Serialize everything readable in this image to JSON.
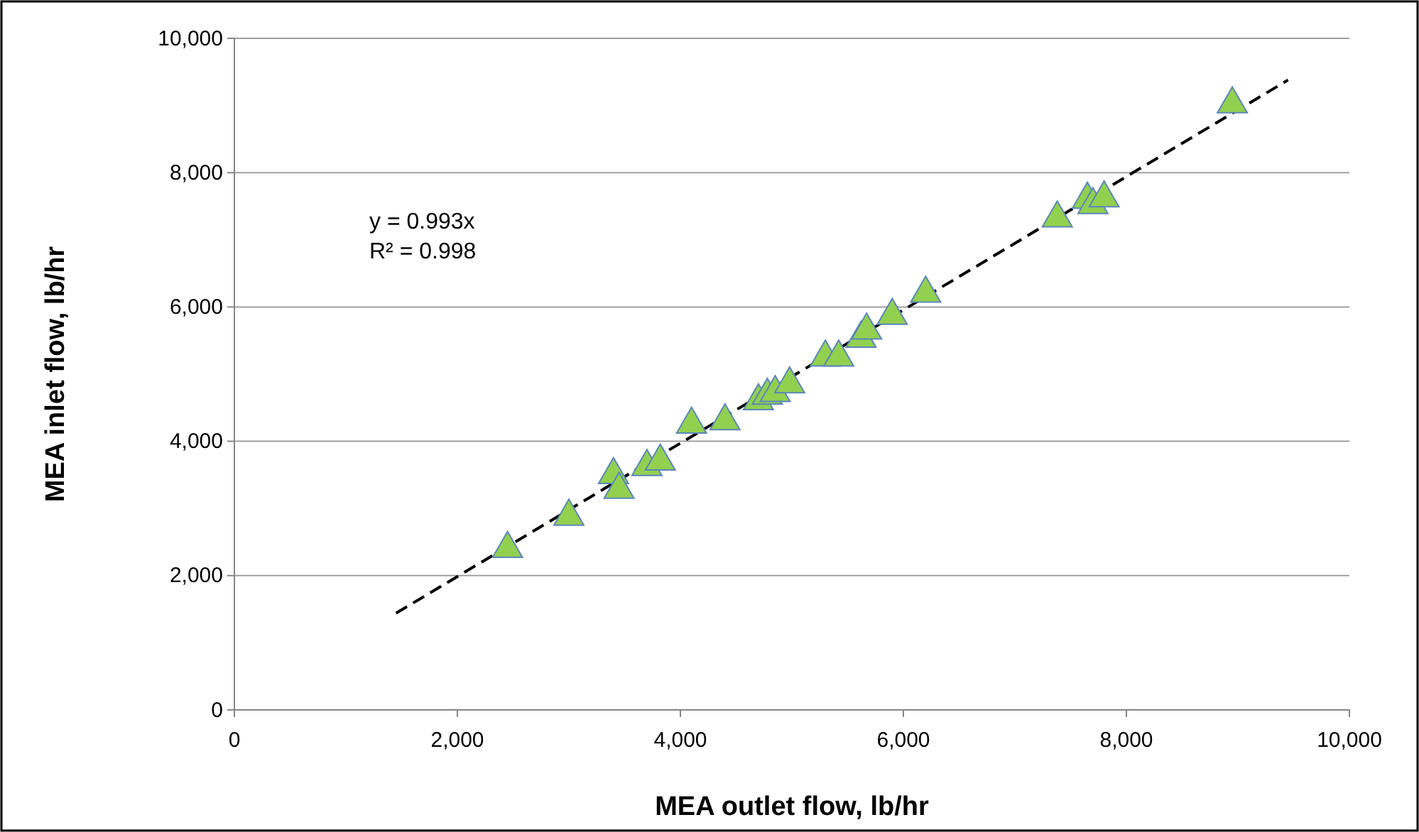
{
  "chart_data": {
    "type": "scatter",
    "xlabel": "MEA outlet flow, lb/hr",
    "ylabel": "MEA inlet flow, lb/hr",
    "xlim": [
      0,
      10000
    ],
    "ylim": [
      0,
      10000
    ],
    "xticks": [
      {
        "value": 0,
        "label": "0"
      },
      {
        "value": 2000,
        "label": "2,000"
      },
      {
        "value": 4000,
        "label": "4,000"
      },
      {
        "value": 6000,
        "label": "6,000"
      },
      {
        "value": 8000,
        "label": "8,000"
      },
      {
        "value": 10000,
        "label": "10,000"
      }
    ],
    "yticks": [
      {
        "value": 0,
        "label": "0"
      },
      {
        "value": 2000,
        "label": "2,000"
      },
      {
        "value": 4000,
        "label": "4,000"
      },
      {
        "value": 6000,
        "label": "6,000"
      },
      {
        "value": 8000,
        "label": "8,000"
      },
      {
        "value": 10000,
        "label": "10,000"
      }
    ],
    "grid": "y",
    "marker": "triangle",
    "annotations": [
      "y = 0.993x",
      "R² = 0.998"
    ],
    "series": [
      {
        "color": "#92d050",
        "x": [
          2450,
          3000,
          3400,
          3450,
          3700,
          3820,
          4100,
          4400,
          4700,
          4780,
          4850,
          4980,
          5300,
          5420,
          5620,
          5670,
          5900,
          6200,
          7380,
          7650,
          7700,
          7800,
          8950
        ],
        "values": [
          2400,
          2880,
          3500,
          3280,
          3620,
          3700,
          4250,
          4300,
          4600,
          4680,
          4720,
          4850,
          5250,
          5250,
          5530,
          5650,
          5870,
          6200,
          7320,
          7600,
          7520,
          7620,
          9020
        ]
      },
      {
        "type": "line",
        "color": "#000000",
        "line_style": "dashed",
        "marker": "none",
        "x": [
          1450,
          9450
        ],
        "values": [
          1440,
          9380
        ]
      }
    ]
  }
}
